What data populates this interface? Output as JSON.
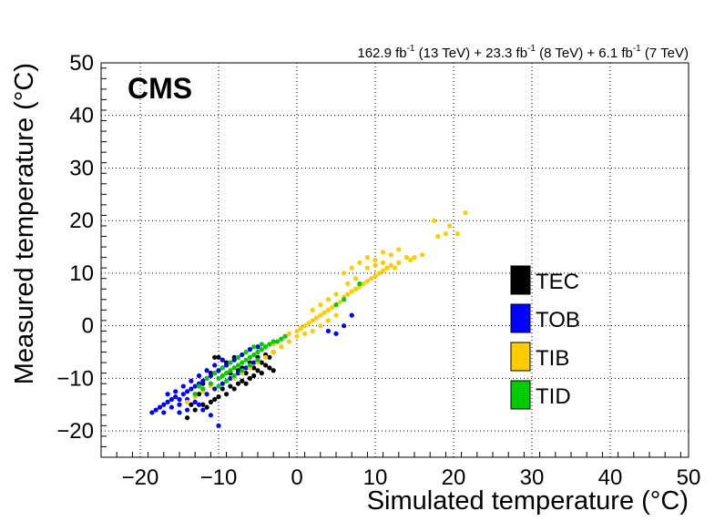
{
  "chart_data": {
    "type": "scatter",
    "cms_label": "CMS",
    "lumi_text": {
      "part1": "162.9 fb",
      "sup1": "-1",
      "part2": " (13 TeV) + 23.3 fb",
      "sup2": "-1",
      "part3": " (8 TeV) + 6.1 fb",
      "sup3": "-1",
      "part4": " (7 TeV)"
    },
    "xlabel": "Simulated temperature (°C)",
    "ylabel": "Measured temperature (°C)",
    "xlim": [
      -25,
      50
    ],
    "ylim": [
      -25,
      50
    ],
    "xticks": [
      -20,
      -10,
      0,
      10,
      20,
      30,
      40,
      50
    ],
    "yticks": [
      -20,
      -10,
      0,
      10,
      20,
      30,
      40,
      50
    ],
    "xtick_labels": [
      "−20",
      "−10",
      "0",
      "10",
      "20",
      "30",
      "40",
      "50"
    ],
    "ytick_labels": [
      "−20",
      "−10",
      "0",
      "10",
      "20",
      "30",
      "40",
      "50"
    ],
    "grid": true,
    "legend_position": "right",
    "series": [
      {
        "name": "TEC",
        "color": "#000000",
        "points": [
          [
            -14,
            -17.5
          ],
          [
            -13,
            -16
          ],
          [
            -12,
            -15
          ],
          [
            -11.5,
            -15.5
          ],
          [
            -11,
            -14.5
          ],
          [
            -10.5,
            -14
          ],
          [
            -10,
            -13.5
          ],
          [
            -9.5,
            -12
          ],
          [
            -9,
            -13
          ],
          [
            -8.5,
            -11.5
          ],
          [
            -8,
            -12
          ],
          [
            -7.5,
            -11
          ],
          [
            -7,
            -10.5
          ],
          [
            -6.5,
            -11
          ],
          [
            -6,
            -10
          ],
          [
            -5.5,
            -9.5
          ],
          [
            -5,
            -8.5
          ],
          [
            -4.5,
            -9
          ],
          [
            -4,
            -7.5
          ],
          [
            -3.5,
            -8
          ],
          [
            -3.5,
            -6
          ],
          [
            -10.5,
            -6
          ],
          [
            -10,
            -6
          ],
          [
            -9.5,
            -6.5
          ],
          [
            -9,
            -7
          ],
          [
            -8,
            -6
          ],
          [
            -11,
            -9
          ],
          [
            -12,
            -11
          ],
          [
            -7,
            -8
          ],
          [
            -6,
            -7
          ],
          [
            -5,
            -6
          ],
          [
            -4,
            -5.5
          ],
          [
            -3,
            -5
          ],
          [
            -12.5,
            -13
          ],
          [
            -13.5,
            -15
          ],
          [
            -8.5,
            -9
          ],
          [
            -7.5,
            -8.5
          ],
          [
            -6.5,
            -9
          ],
          [
            -5.5,
            -8
          ],
          [
            -4.5,
            -7
          ],
          [
            -3,
            -8.5
          ]
        ]
      },
      {
        "name": "TOB",
        "color": "#0000ff",
        "points": [
          [
            -18.5,
            -16.5
          ],
          [
            -18,
            -16
          ],
          [
            -17.5,
            -15.5
          ],
          [
            -17,
            -15
          ],
          [
            -16.5,
            -14.5
          ],
          [
            -16,
            -14
          ],
          [
            -15.5,
            -13.5
          ],
          [
            -15,
            -14
          ],
          [
            -14.5,
            -13
          ],
          [
            -14,
            -12.5
          ],
          [
            -13.5,
            -12
          ],
          [
            -13,
            -11.5
          ],
          [
            -12.5,
            -11
          ],
          [
            -12,
            -10.5
          ],
          [
            -11.5,
            -10
          ],
          [
            -11,
            -9.5
          ],
          [
            -10.5,
            -9
          ],
          [
            -10,
            -8.5
          ],
          [
            -9.5,
            -8
          ],
          [
            -9,
            -7.5
          ],
          [
            -8.5,
            -7
          ],
          [
            -8,
            -6.5
          ],
          [
            -7.5,
            -6
          ],
          [
            -7,
            -5.5
          ],
          [
            -17,
            -16.5
          ],
          [
            -16,
            -15.5
          ],
          [
            -15,
            -15
          ],
          [
            -14,
            -14
          ],
          [
            -13,
            -13
          ],
          [
            -12,
            -12
          ],
          [
            -11,
            -11
          ],
          [
            -10,
            -10
          ],
          [
            -9,
            -9
          ],
          [
            -8,
            -8
          ],
          [
            -16.5,
            -13
          ],
          [
            -15.5,
            -12.5
          ],
          [
            -14.5,
            -11.5
          ],
          [
            -13.5,
            -10.5
          ],
          [
            -12.5,
            -9.5
          ],
          [
            -11.5,
            -8.5
          ],
          [
            -10.5,
            -7.5
          ],
          [
            -9.5,
            -6.5
          ],
          [
            -12,
            -16
          ],
          [
            -11,
            -17
          ],
          [
            -10,
            -19
          ],
          [
            -12.5,
            -15
          ],
          [
            -14,
            -16
          ],
          [
            -15,
            -16.5
          ],
          [
            -13,
            -14.5
          ],
          [
            -11.5,
            -13
          ],
          [
            -10.5,
            -12
          ],
          [
            -9.5,
            -11
          ],
          [
            -8.5,
            -10
          ],
          [
            -7.5,
            -9
          ],
          [
            -6.5,
            -8
          ],
          [
            -5.5,
            -7
          ],
          [
            -6,
            -4.5
          ],
          [
            -5,
            -4
          ],
          [
            4,
            -1
          ],
          [
            5,
            -1.5
          ],
          [
            6,
            0
          ],
          [
            7,
            2
          ]
        ]
      },
      {
        "name": "TIB",
        "color": "#ffcc00",
        "points": [
          [
            -14,
            -14.5
          ],
          [
            -13,
            -13.5
          ],
          [
            -12,
            -12.5
          ],
          [
            -11,
            -11.5
          ],
          [
            -10,
            -10
          ],
          [
            -9,
            -9
          ],
          [
            -8,
            -8
          ],
          [
            -7,
            -7
          ],
          [
            -6,
            -6
          ],
          [
            -5,
            -5
          ],
          [
            -4,
            -4
          ],
          [
            -3,
            -3.5
          ],
          [
            -2,
            -2.5
          ],
          [
            -1,
            -1.5
          ],
          [
            0,
            -1
          ],
          [
            0.5,
            -0.5
          ],
          [
            1,
            0
          ],
          [
            1.5,
            0.5
          ],
          [
            2,
            1
          ],
          [
            2.5,
            1.5
          ],
          [
            3,
            2
          ],
          [
            3.5,
            2.5
          ],
          [
            4,
            3
          ],
          [
            4.5,
            3.5
          ],
          [
            5,
            4
          ],
          [
            5.5,
            4.5
          ],
          [
            6,
            5.5
          ],
          [
            6.5,
            6
          ],
          [
            7,
            6.5
          ],
          [
            7.5,
            7
          ],
          [
            8,
            7.5
          ],
          [
            8.5,
            8
          ],
          [
            9,
            8.5
          ],
          [
            9.5,
            9
          ],
          [
            10,
            9.5
          ],
          [
            10.5,
            10
          ],
          [
            11,
            10.5
          ],
          [
            11.5,
            11
          ],
          [
            12,
            11.5
          ],
          [
            12.5,
            11
          ],
          [
            13,
            12
          ],
          [
            14,
            13
          ],
          [
            14.5,
            12.5
          ],
          [
            15,
            13
          ],
          [
            16,
            13.5
          ],
          [
            6,
            10
          ],
          [
            7,
            11
          ],
          [
            8,
            12
          ],
          [
            9,
            13
          ],
          [
            10,
            12.5
          ],
          [
            11,
            14
          ],
          [
            12,
            13.5
          ],
          [
            13,
            14.5
          ],
          [
            17.5,
            20
          ],
          [
            18,
            17
          ],
          [
            19,
            17.5
          ],
          [
            19.5,
            19
          ],
          [
            20.5,
            17.5
          ],
          [
            21.5,
            21.5
          ],
          [
            2,
            -1
          ],
          [
            3,
            0
          ],
          [
            4,
            1
          ],
          [
            5,
            2
          ],
          [
            -2,
            -4
          ],
          [
            -1,
            -3
          ],
          [
            0,
            -2
          ],
          [
            1,
            -1.5
          ],
          [
            2,
            3
          ],
          [
            3,
            4
          ],
          [
            4,
            5
          ],
          [
            5,
            6
          ],
          [
            -6,
            -8
          ],
          [
            -5,
            -7
          ],
          [
            -4,
            -6
          ],
          [
            -3,
            -5
          ],
          [
            -8,
            -10
          ],
          [
            -7,
            -9
          ],
          [
            9,
            11
          ],
          [
            10,
            11.5
          ],
          [
            11,
            12
          ],
          [
            6.5,
            8
          ],
          [
            7.5,
            9
          ]
        ]
      },
      {
        "name": "TID",
        "color": "#00cc00",
        "points": [
          [
            -12,
            -12
          ],
          [
            -11,
            -11
          ],
          [
            -10,
            -10
          ],
          [
            -9.5,
            -9.5
          ],
          [
            -9,
            -9
          ],
          [
            -8.5,
            -8.5
          ],
          [
            -8,
            -8
          ],
          [
            -7.5,
            -7.5
          ],
          [
            -7,
            -7
          ],
          [
            -6.5,
            -6.5
          ],
          [
            -6,
            -6
          ],
          [
            -5.5,
            -5.5
          ],
          [
            -5,
            -5
          ],
          [
            -4.5,
            -4.5
          ],
          [
            -4,
            -4
          ],
          [
            -3.5,
            -3.5
          ],
          [
            -3,
            -3
          ],
          [
            -2.5,
            -3
          ],
          [
            -2,
            -2.5
          ],
          [
            -1.5,
            -2
          ],
          [
            -11.5,
            -10
          ],
          [
            -10.5,
            -9
          ],
          [
            -9.5,
            -8
          ],
          [
            -8.5,
            -7
          ],
          [
            -7.5,
            -6
          ],
          [
            -6.5,
            -5
          ],
          [
            -5.5,
            -4
          ],
          [
            -4.5,
            -3.5
          ],
          [
            -13,
            -13
          ],
          [
            -12.5,
            -11.5
          ],
          [
            -10,
            -11.5
          ],
          [
            -9,
            -10.5
          ],
          [
            -8,
            -9.5
          ],
          [
            -7,
            -8.5
          ],
          [
            -6,
            -7.5
          ],
          [
            -5,
            -6.5
          ],
          [
            5,
            4
          ],
          [
            6,
            5
          ],
          [
            8,
            8
          ]
        ]
      }
    ]
  }
}
